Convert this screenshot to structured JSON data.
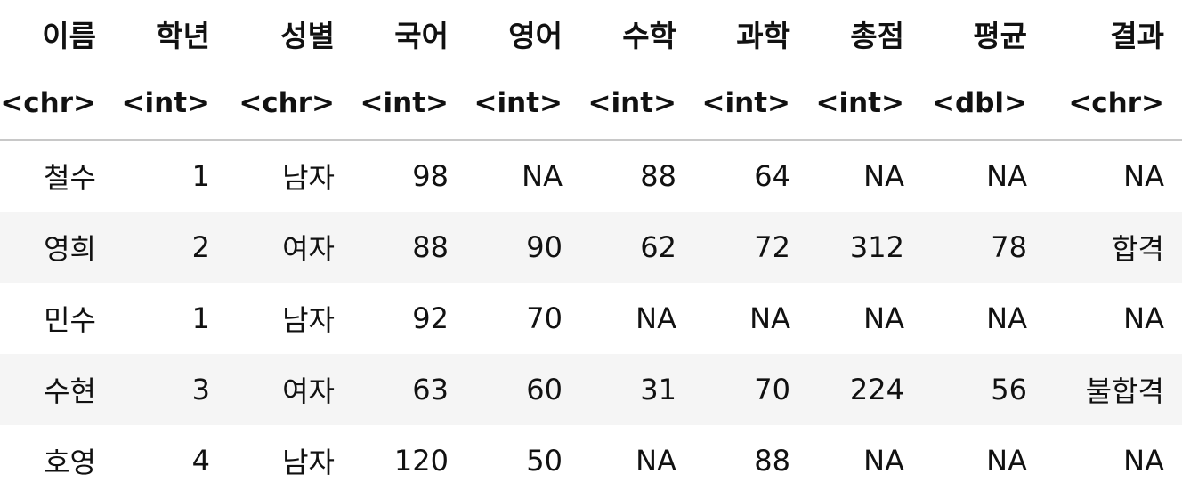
{
  "table": {
    "columns": [
      {
        "name": "이름",
        "type": "<chr>"
      },
      {
        "name": "학년",
        "type": "<int>"
      },
      {
        "name": "성별",
        "type": "<chr>"
      },
      {
        "name": "국어",
        "type": "<int>"
      },
      {
        "name": "영어",
        "type": "<int>"
      },
      {
        "name": "수학",
        "type": "<int>"
      },
      {
        "name": "과학",
        "type": "<int>"
      },
      {
        "name": "총점",
        "type": "<int>"
      },
      {
        "name": "평균",
        "type": "<dbl>"
      },
      {
        "name": "결과",
        "type": "<chr>"
      }
    ],
    "rows": [
      [
        "철수",
        "1",
        "남자",
        "98",
        "NA",
        "88",
        "64",
        "NA",
        "NA",
        "NA"
      ],
      [
        "영희",
        "2",
        "여자",
        "88",
        "90",
        "62",
        "72",
        "312",
        "78",
        "합격"
      ],
      [
        "민수",
        "1",
        "남자",
        "92",
        "70",
        "NA",
        "NA",
        "NA",
        "NA",
        "NA"
      ],
      [
        "수현",
        "3",
        "여자",
        "63",
        "60",
        "31",
        "70",
        "224",
        "56",
        "불합격"
      ],
      [
        "호영",
        "4",
        "남자",
        "120",
        "50",
        "NA",
        "88",
        "NA",
        "NA",
        "NA"
      ]
    ]
  }
}
